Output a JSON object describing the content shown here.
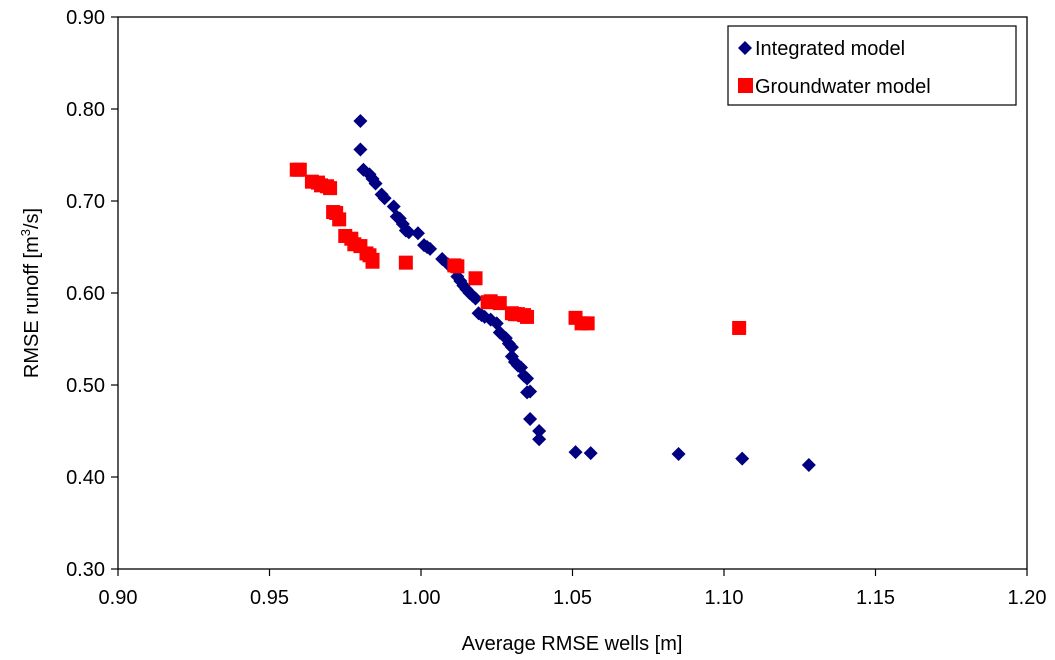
{
  "chart_data": {
    "type": "scatter",
    "title": "",
    "xlabel": "Average RMSE wells [m]",
    "ylabel": {
      "base": "RMSE runoff [m",
      "sup": "3",
      "tail": "/s]"
    },
    "xlim": [
      0.9,
      1.2
    ],
    "ylim": [
      0.3,
      0.9
    ],
    "x_ticks": [
      "0.90",
      "0.95",
      "1.00",
      "1.05",
      "1.10",
      "1.15",
      "1.20"
    ],
    "y_ticks": [
      "0.30",
      "0.40",
      "0.50",
      "0.60",
      "0.70",
      "0.80",
      "0.90"
    ],
    "grid": false,
    "legend_position": "top-right",
    "series": [
      {
        "name": "Integrated model",
        "marker": "diamond",
        "color": "#000080",
        "points": [
          [
            0.98,
            0.787
          ],
          [
            0.98,
            0.756
          ],
          [
            0.981,
            0.734
          ],
          [
            0.983,
            0.729
          ],
          [
            0.984,
            0.724
          ],
          [
            0.985,
            0.719
          ],
          [
            0.987,
            0.707
          ],
          [
            0.988,
            0.703
          ],
          [
            0.991,
            0.694
          ],
          [
            0.992,
            0.683
          ],
          [
            0.993,
            0.681
          ],
          [
            0.994,
            0.675
          ],
          [
            0.995,
            0.668
          ],
          [
            0.996,
            0.666
          ],
          [
            0.999,
            0.665
          ],
          [
            1.001,
            0.652
          ],
          [
            1.002,
            0.65
          ],
          [
            1.003,
            0.648
          ],
          [
            1.007,
            0.637
          ],
          [
            1.009,
            0.631
          ],
          [
            1.011,
            0.628
          ],
          [
            1.012,
            0.618
          ],
          [
            1.013,
            0.613
          ],
          [
            1.014,
            0.608
          ],
          [
            1.015,
            0.604
          ],
          [
            1.016,
            0.6
          ],
          [
            1.017,
            0.597
          ],
          [
            1.018,
            0.594
          ],
          [
            1.019,
            0.578
          ],
          [
            1.02,
            0.576
          ],
          [
            1.021,
            0.574
          ],
          [
            1.023,
            0.571
          ],
          [
            1.025,
            0.567
          ],
          [
            1.026,
            0.557
          ],
          [
            1.028,
            0.551
          ],
          [
            1.029,
            0.545
          ],
          [
            1.03,
            0.541
          ],
          [
            1.03,
            0.531
          ],
          [
            1.031,
            0.525
          ],
          [
            1.032,
            0.521
          ],
          [
            1.033,
            0.519
          ],
          [
            1.034,
            0.51
          ],
          [
            1.035,
            0.507
          ],
          [
            1.035,
            0.492
          ],
          [
            1.036,
            0.493
          ],
          [
            1.036,
            0.463
          ],
          [
            1.039,
            0.45
          ],
          [
            1.039,
            0.441
          ],
          [
            1.051,
            0.427
          ],
          [
            1.056,
            0.426
          ],
          [
            1.085,
            0.425
          ],
          [
            1.106,
            0.42
          ],
          [
            1.128,
            0.413
          ]
        ]
      },
      {
        "name": "Groundwater model",
        "marker": "square",
        "color": "#ff0000",
        "points": [
          [
            0.959,
            0.734
          ],
          [
            0.96,
            0.734
          ],
          [
            0.964,
            0.721
          ],
          [
            0.966,
            0.72
          ],
          [
            0.967,
            0.717
          ],
          [
            0.969,
            0.716
          ],
          [
            0.97,
            0.714
          ],
          [
            0.971,
            0.688
          ],
          [
            0.972,
            0.687
          ],
          [
            0.973,
            0.68
          ],
          [
            0.975,
            0.662
          ],
          [
            0.977,
            0.659
          ],
          [
            0.978,
            0.653
          ],
          [
            0.98,
            0.651
          ],
          [
            0.982,
            0.643
          ],
          [
            0.983,
            0.641
          ],
          [
            0.984,
            0.636
          ],
          [
            0.984,
            0.634
          ],
          [
            0.995,
            0.633
          ],
          [
            1.011,
            0.63
          ],
          [
            1.012,
            0.629
          ],
          [
            1.018,
            0.616
          ],
          [
            1.022,
            0.59
          ],
          [
            1.023,
            0.591
          ],
          [
            1.026,
            0.589
          ],
          [
            1.03,
            0.578
          ],
          [
            1.031,
            0.577
          ],
          [
            1.032,
            0.577
          ],
          [
            1.034,
            0.576
          ],
          [
            1.035,
            0.574
          ],
          [
            1.051,
            0.573
          ],
          [
            1.053,
            0.567
          ],
          [
            1.055,
            0.567
          ],
          [
            1.105,
            0.562
          ]
        ]
      }
    ]
  }
}
